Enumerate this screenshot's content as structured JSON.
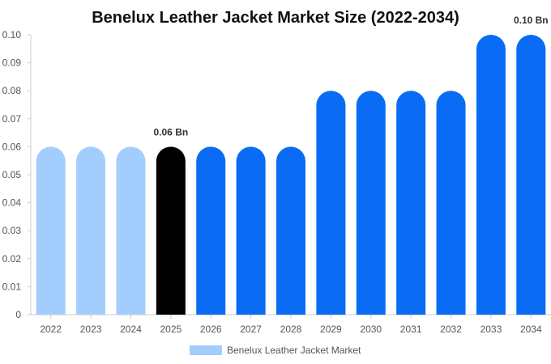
{
  "chart_data": {
    "type": "bar",
    "title": "Benelux Leather Jacket Market Size (2022-2034)",
    "categories": [
      "2022",
      "2023",
      "2024",
      "2025",
      "2026",
      "2027",
      "2028",
      "2029",
      "2030",
      "2031",
      "2032",
      "2033",
      "2034"
    ],
    "series": [
      {
        "name": "Benelux Leather Jacket Market",
        "values": [
          0.06,
          0.06,
          0.06,
          0.06,
          0.06,
          0.06,
          0.06,
          0.08,
          0.08,
          0.08,
          0.08,
          0.1,
          0.1
        ]
      }
    ],
    "bar_colors": [
      "#a3cdfd",
      "#a3cdfd",
      "#a3cdfd",
      "#000000",
      "#0a6cf5",
      "#0a6cf5",
      "#0a6cf5",
      "#0a6cf5",
      "#0a6cf5",
      "#0a6cf5",
      "#0a6cf5",
      "#0a6cf5",
      "#0a6cf5"
    ],
    "legend_color": "#a3cdfd",
    "data_labels": [
      {
        "category": "2025",
        "text": "0.06 Bn"
      },
      {
        "category": "2034",
        "text": "0.10 Bn"
      }
    ],
    "y_ticks": [
      "0",
      "0.01",
      "0.02",
      "0.03",
      "0.04",
      "0.05",
      "0.06",
      "0.07",
      "0.08",
      "0.09",
      "0.10"
    ],
    "ylim": [
      0,
      0.1
    ],
    "grid": false,
    "legend_position": "bottom-center"
  }
}
